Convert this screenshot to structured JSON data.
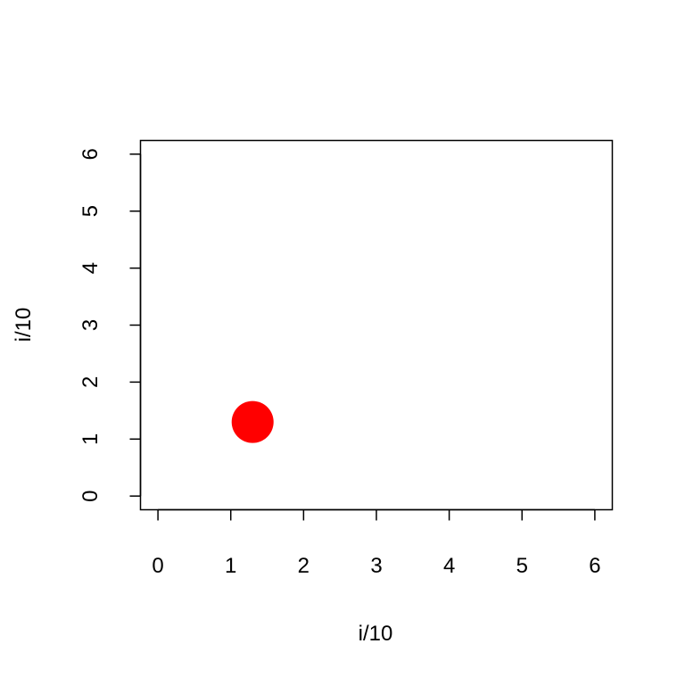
{
  "chart_data": {
    "type": "scatter",
    "title": "",
    "xlabel": "i/10",
    "ylabel": "i/10",
    "xlim": [
      -0.24,
      6.24
    ],
    "ylim": [
      -0.24,
      6.24
    ],
    "x_ticks": [
      0,
      1,
      2,
      3,
      4,
      5,
      6
    ],
    "y_ticks": [
      0,
      1,
      2,
      3,
      4,
      5,
      6
    ],
    "grid": false,
    "series": [
      {
        "points": [
          {
            "x": 1.3,
            "y": 1.3
          }
        ],
        "color": "#ff0000",
        "marker": "filled-circle"
      }
    ]
  }
}
